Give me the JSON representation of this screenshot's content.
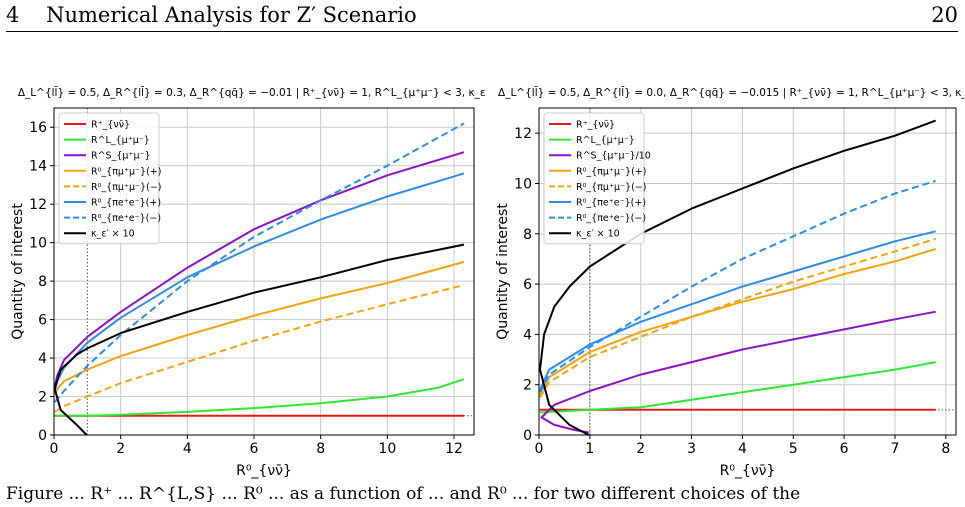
{
  "page": {
    "section_number": "4",
    "section_title": "Numerical Analysis for Z′ Scenario",
    "page_number": "20",
    "caption_fragment": "Figure ... R⁺ ... R^{L,S} ... R⁰ ... as a function of ... and R⁰ ... for two different choices of the"
  },
  "chart_data": [
    {
      "type": "line",
      "title": "Δ_L^{ll̄} = 0.5, Δ_R^{ll̄} = 0.3, Δ_R^{qq̄} = −0.01 | R⁺_{νν̄} = 1, R^L_{μ⁺μ⁻} < 3, κ_ε′ > 0",
      "xlabel": "R⁰_{νν̄}",
      "ylabel": "Quantity of interest",
      "xlim": [
        0,
        12.6
      ],
      "ylim": [
        0,
        17
      ],
      "xticks": [
        "0",
        "2",
        "4",
        "6",
        "8",
        "10",
        "12"
      ],
      "yticks": [
        "0",
        "2",
        "4",
        "6",
        "8",
        "10",
        "12",
        "14",
        "16"
      ],
      "grid": true,
      "legend_position": "top-left",
      "series": [
        {
          "name": "R⁺_{νν̄}",
          "color": "#e8191d",
          "dash": false,
          "x": [
            0.02,
            1,
            2,
            4,
            6,
            8,
            10,
            12.3
          ],
          "y": [
            1,
            1,
            1,
            1,
            1,
            1,
            1,
            1
          ]
        },
        {
          "name": "R^L_{μ⁺μ⁻}",
          "color": "#2ee82e",
          "dash": false,
          "x": [
            0.02,
            1,
            2,
            4,
            6,
            8,
            10,
            11.5,
            12.3
          ],
          "y": [
            1,
            1,
            1.05,
            1.2,
            1.4,
            1.65,
            2,
            2.45,
            2.9
          ]
        },
        {
          "name": "R^S_{μ⁺μ⁻}",
          "color": "#8b12c9",
          "dash": false,
          "x": [
            0.02,
            0.1,
            0.3,
            1,
            2,
            4,
            6,
            8,
            10,
            12.3
          ],
          "y": [
            2.5,
            3.1,
            3.9,
            5.1,
            6.4,
            8.7,
            10.7,
            12.2,
            13.5,
            14.7
          ]
        },
        {
          "name": "R⁰_{πμ⁺μ⁻}(+)",
          "color": "#f5a30f",
          "dash": false,
          "x": [
            0.02,
            0.1,
            0.3,
            1,
            2,
            4,
            6,
            8,
            10,
            12.3
          ],
          "y": [
            2.1,
            2.4,
            2.8,
            3.4,
            4.1,
            5.2,
            6.2,
            7.1,
            7.9,
            9
          ]
        },
        {
          "name": "R⁰_{πμ⁺μ⁻}(−)",
          "color": "#f5a30f",
          "dash": true,
          "x": [
            0.02,
            0.3,
            1,
            2,
            4,
            6,
            8,
            10,
            12.3
          ],
          "y": [
            1.2,
            1.5,
            2,
            2.7,
            3.8,
            4.9,
            5.9,
            6.8,
            7.8
          ]
        },
        {
          "name": "R⁰_{πe⁺e⁻}(+)",
          "color": "#2c8ce8",
          "dash": false,
          "x": [
            0.02,
            0.1,
            0.3,
            1,
            2,
            4,
            6,
            8,
            10,
            12.3
          ],
          "y": [
            2.3,
            2.8,
            3.5,
            4.8,
            6.1,
            8.2,
            9.8,
            11.2,
            12.4,
            13.6
          ]
        },
        {
          "name": "R⁰_{πe⁺e⁻}(−)",
          "color": "#2c8ce8",
          "dash": true,
          "x": [
            0.02,
            0.3,
            1,
            2,
            4,
            6,
            8,
            10,
            12.3
          ],
          "y": [
            1.7,
            2.3,
            3.6,
            5.2,
            8,
            10.3,
            12.2,
            14,
            16.2
          ]
        },
        {
          "name": "κ_ε′ × 10",
          "color": "#000000",
          "dash": false,
          "x": [
            0.98,
            0.7,
            0.2,
            0.02,
            0.2,
            0.7,
            1,
            2,
            4,
            6,
            8,
            10,
            12.3
          ],
          "y": [
            0,
            0.5,
            1.3,
            2.4,
            3.4,
            4.2,
            4.5,
            5.3,
            6.4,
            7.4,
            8.2,
            9.1,
            9.9
          ]
        }
      ],
      "reference_lines": {
        "vertical_x": 1,
        "horizontal_y": 1
      }
    },
    {
      "type": "line",
      "title": "Δ_L^{ll̄} = 0.5, Δ_R^{ll̄} = 0.0, Δ_R^{qq̄} = −0.015 | R⁺_{νν̄} = 1, R^L_{μ⁺μ⁻} < 3, κ_ε′ > 0",
      "xlabel": "R⁰_{νν̄}",
      "ylabel": "Quantity of interest",
      "xlim": [
        0,
        8.2
      ],
      "ylim": [
        0,
        13
      ],
      "xticks": [
        "0",
        "1",
        "2",
        "3",
        "4",
        "5",
        "6",
        "7",
        "8"
      ],
      "yticks": [
        "0",
        "2",
        "4",
        "6",
        "8",
        "10",
        "12"
      ],
      "grid": true,
      "legend_position": "top-left",
      "series": [
        {
          "name": "R⁺_{νν̄}",
          "color": "#e8191d",
          "dash": false,
          "x": [
            0.02,
            1,
            2,
            4,
            6,
            7.8
          ],
          "y": [
            1,
            1,
            1,
            1,
            1,
            1
          ]
        },
        {
          "name": "R^L_{μ⁺μ⁻}",
          "color": "#2ee82e",
          "dash": false,
          "x": [
            0.02,
            1,
            2,
            3,
            4,
            5,
            6,
            7,
            7.8
          ],
          "y": [
            0.9,
            1,
            1.1,
            1.4,
            1.7,
            2,
            2.3,
            2.6,
            2.9
          ]
        },
        {
          "name": "R^S_{μ⁺μ⁻}/10",
          "color": "#8b12c9",
          "dash": false,
          "x": [
            0.98,
            0.7,
            0.3,
            0.05,
            0.3,
            1,
            2,
            3,
            4,
            5,
            6,
            7,
            7.8
          ],
          "y": [
            0.1,
            0.2,
            0.4,
            0.7,
            1.2,
            1.75,
            2.4,
            2.9,
            3.4,
            3.8,
            4.2,
            4.6,
            4.9
          ]
        },
        {
          "name": "R⁰_{πμ⁺μ⁻}(+)",
          "color": "#f5a30f",
          "dash": false,
          "x": [
            0.02,
            0.2,
            1,
            2,
            3,
            4,
            5,
            6,
            7,
            7.8
          ],
          "y": [
            1.6,
            2.3,
            3.3,
            4.1,
            4.7,
            5.3,
            5.8,
            6.4,
            6.9,
            7.4
          ]
        },
        {
          "name": "R⁰_{πμ⁺μ⁻}(−)",
          "color": "#f5a30f",
          "dash": true,
          "x": [
            0.02,
            0.2,
            1,
            2,
            3,
            4,
            5,
            6,
            7,
            7.8
          ],
          "y": [
            1.5,
            2.1,
            3.1,
            3.9,
            4.7,
            5.4,
            6.1,
            6.7,
            7.3,
            7.8
          ]
        },
        {
          "name": "R⁰_{πe⁺e⁻}(+)",
          "color": "#2c8ce8",
          "dash": false,
          "x": [
            0.02,
            0.2,
            1,
            2,
            3,
            4,
            5,
            6,
            7,
            7.8
          ],
          "y": [
            1.8,
            2.6,
            3.6,
            4.5,
            5.2,
            5.9,
            6.5,
            7.1,
            7.7,
            8.1
          ]
        },
        {
          "name": "R⁰_{πe⁺e⁻}(−)",
          "color": "#2c8ce8",
          "dash": true,
          "x": [
            0.02,
            0.2,
            1,
            2,
            3,
            4,
            5,
            6,
            7,
            7.8
          ],
          "y": [
            1.7,
            2.4,
            3.5,
            4.7,
            5.9,
            7,
            7.9,
            8.8,
            9.6,
            10.1
          ]
        },
        {
          "name": "κ_ε′ × 10",
          "color": "#000000",
          "dash": false,
          "x": [
            0.98,
            0.6,
            0.2,
            0.02,
            0.1,
            0.3,
            0.6,
            1,
            2,
            3,
            4,
            5,
            6,
            7,
            7.8
          ],
          "y": [
            0,
            0.4,
            1.2,
            2.6,
            4,
            5.1,
            5.9,
            6.7,
            8,
            9,
            9.8,
            10.6,
            11.3,
            11.9,
            12.5
          ]
        }
      ],
      "reference_lines": {
        "vertical_x": 1,
        "horizontal_y": 1
      }
    }
  ]
}
